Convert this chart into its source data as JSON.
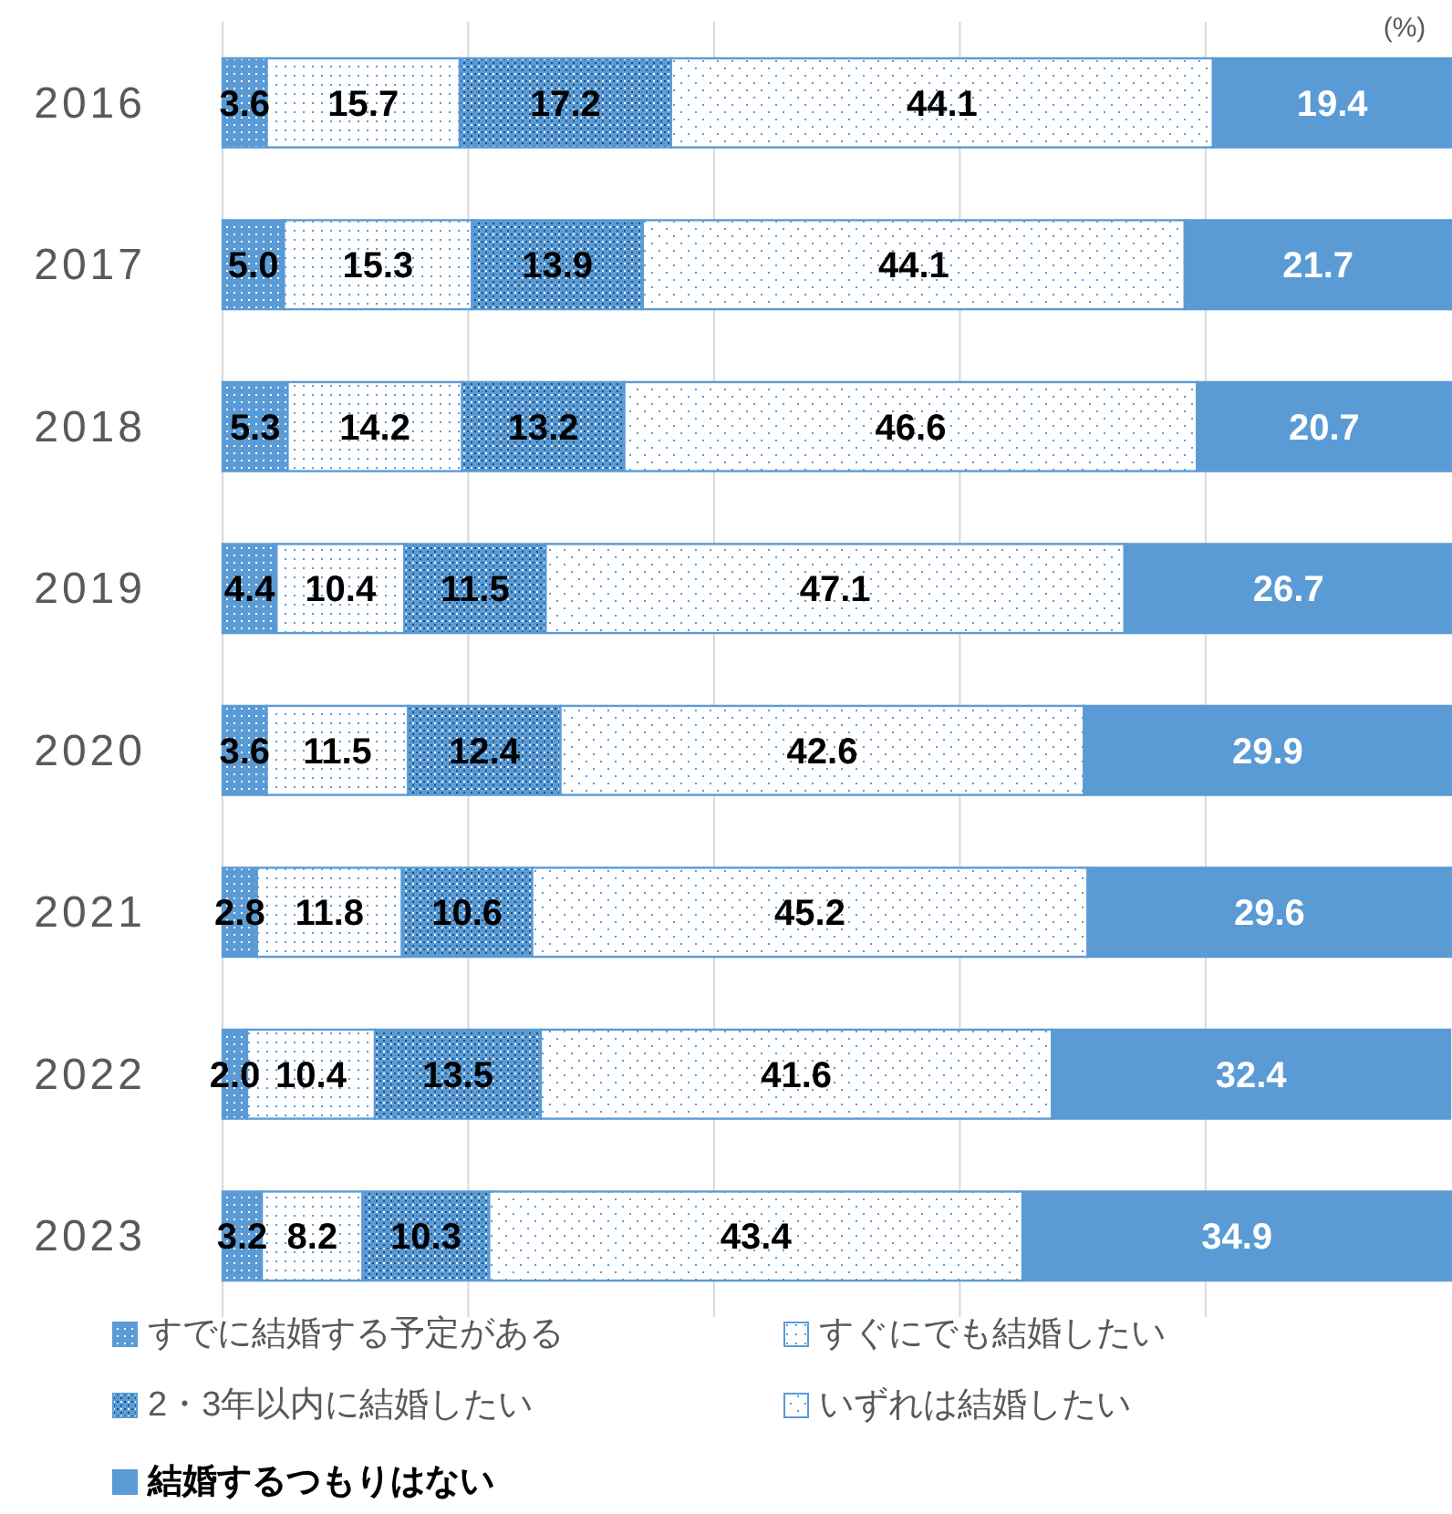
{
  "chart_data": {
    "type": "bar",
    "orientation": "horizontal",
    "stacked": true,
    "legend": "bottom",
    "grid": "x",
    "tick_labels": "y",
    "categories": [
      "2016",
      "2017",
      "2018",
      "2019",
      "2020",
      "2021",
      "2022",
      "2023"
    ],
    "xlim": [
      0,
      100.2
    ],
    "xticks": [
      {
        "value": 0,
        "label": null
      },
      {
        "value": 20,
        "label": null
      },
      {
        "value": 40,
        "label": null
      },
      {
        "value": 60,
        "label": null
      },
      {
        "value": 80,
        "label": null
      }
    ],
    "annotations": [
      "(%)"
    ],
    "series": [
      {
        "name": "すでに結婚する予定がある",
        "color": "#5b9bd5",
        "values": [
          3.6,
          5.0,
          5.3,
          4.4,
          3.6,
          2.8,
          2.0,
          3.2
        ],
        "value_labels": [
          "3.6",
          "5.0",
          "5.3",
          "4.4",
          "3.6",
          "2.8",
          "2.0",
          "3.2"
        ]
      },
      {
        "name": "すぐにでも結婚したい",
        "color": "#ffffff",
        "values": [
          15.7,
          15.3,
          14.2,
          10.4,
          11.5,
          11.8,
          10.4,
          8.2
        ],
        "value_labels": [
          "15.7",
          "15.3",
          "14.2",
          "10.4",
          "11.5",
          "11.8",
          "10.4",
          "8.2"
        ]
      },
      {
        "name": "2・3年以内に結婚したい",
        "color": "#5b9bd5",
        "values": [
          17.2,
          13.9,
          13.2,
          11.5,
          12.4,
          10.6,
          13.5,
          10.3
        ],
        "value_labels": [
          "17.2",
          "13.9",
          "13.2",
          "11.5",
          "12.4",
          "10.6",
          "13.5",
          "10.3"
        ]
      },
      {
        "name": "いずれは結婚したい",
        "color": "#ffffff",
        "values": [
          44.1,
          44.1,
          46.6,
          47.1,
          42.6,
          45.2,
          41.6,
          43.4
        ],
        "value_labels": [
          "44.1",
          "44.1",
          "46.6",
          "47.1",
          "42.6",
          "45.2",
          "41.6",
          "43.4"
        ]
      },
      {
        "name": "結婚するつもりはない",
        "color": "#5b9bd5",
        "values": [
          19.4,
          21.7,
          20.7,
          26.7,
          29.9,
          29.6,
          32.4,
          34.9
        ],
        "value_labels": [
          "19.4",
          "21.7",
          "20.7",
          "26.7",
          "29.9",
          "29.6",
          "32.4",
          "34.9"
        ]
      }
    ]
  }
}
